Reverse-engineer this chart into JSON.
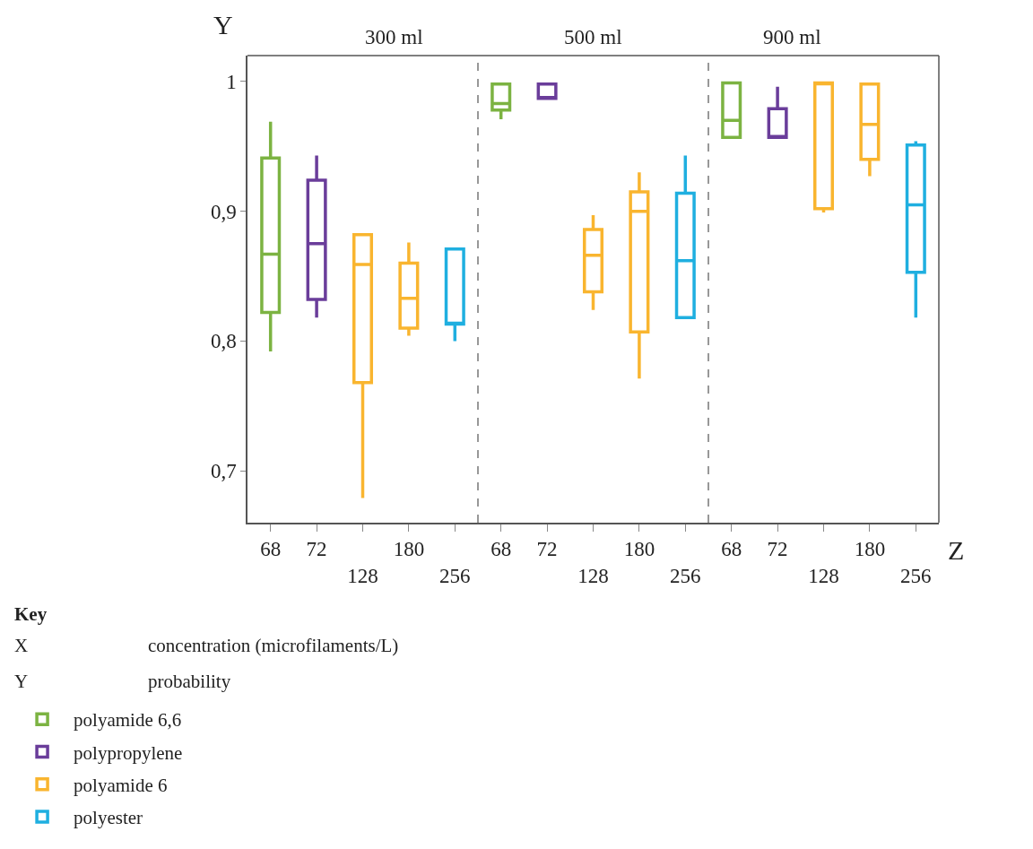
{
  "chart_data": [
    {
      "type": "box",
      "title": "300 ml",
      "ylabel": "Y",
      "categories": [
        "68",
        "72",
        "128",
        "180",
        "256"
      ],
      "ylim": [
        0.66,
        1.02
      ],
      "yticks": [
        {
          "value": 0.7,
          "label": "0,7"
        },
        {
          "value": 0.8,
          "label": "0,8"
        },
        {
          "value": 0.9,
          "label": "0,9"
        },
        1
      ],
      "legend": "bottom left",
      "legend_title": "Key",
      "annotations": [
        "X",
        "concentration (microfilaments/L)",
        "Y",
        "probability"
      ],
      "series": [
        {
          "name": "polyamide 6,6",
          "color": "#7cb342",
          "boxes": [
            {
              "low": 0.792,
              "q1": 0.822,
              "median": 0.867,
              "q3": 0.941,
              "high": 0.969
            },
            null,
            null,
            null,
            null
          ]
        },
        {
          "name": "polypropylene",
          "color": "#6a3d9a",
          "boxes": [
            null,
            {
              "low": 0.818,
              "q1": 0.832,
              "median": 0.875,
              "q3": 0.924,
              "high": 0.943
            },
            null,
            null,
            null
          ]
        },
        {
          "name": "polyamide 6",
          "color": "#f9b52f",
          "boxes": [
            null,
            null,
            {
              "low": 0.679,
              "q1": 0.768,
              "median": 0.859,
              "q3": 0.882,
              "high": 0.882
            },
            {
              "low": 0.804,
              "q1": 0.81,
              "median": 0.833,
              "q3": 0.86,
              "high": 0.876
            },
            null
          ]
        },
        {
          "name": "polyester",
          "color": "#1fafe0",
          "boxes": [
            null,
            null,
            null,
            null,
            {
              "low": 0.8,
              "q1": 0.813,
              "median": 0.813,
              "q3": 0.871,
              "high": 0.871
            }
          ]
        }
      ]
    },
    {
      "type": "box",
      "title": "500 ml",
      "categories": [
        "68",
        "72",
        "128",
        "180",
        "256"
      ],
      "ylim": [
        0.66,
        1.02
      ],
      "tick_labels": "x",
      "series": [
        {
          "color": "#7cb342",
          "boxes": [
            {
              "low": 0.971,
              "q1": 0.978,
              "median": 0.983,
              "q3": 0.998,
              "high": 0.998
            },
            null,
            null,
            null,
            null
          ]
        },
        {
          "color": "#6a3d9a",
          "boxes": [
            null,
            {
              "low": 0.987,
              "q1": 0.987,
              "median": 0.987,
              "q3": 0.998,
              "high": 0.998
            },
            null,
            null,
            null
          ]
        },
        {
          "color": "#f9b52f",
          "boxes": [
            null,
            null,
            {
              "low": 0.824,
              "q1": 0.838,
              "median": 0.866,
              "q3": 0.886,
              "high": 0.897
            },
            {
              "low": 0.771,
              "q1": 0.807,
              "median": 0.9,
              "q3": 0.915,
              "high": 0.93
            },
            null
          ]
        },
        {
          "color": "#1fafe0",
          "boxes": [
            null,
            null,
            null,
            null,
            {
              "low": 0.818,
              "q1": 0.818,
              "median": 0.862,
              "q3": 0.914,
              "high": 0.943
            }
          ]
        }
      ]
    },
    {
      "type": "box",
      "title": "900 ml",
      "xlabel": "Z",
      "categories": [
        "68",
        "72",
        "128",
        "180",
        "256"
      ],
      "ylim": [
        0.66,
        1.02
      ],
      "tick_labels": "x",
      "series": [
        {
          "color": "#7cb342",
          "boxes": [
            {
              "low": 0.957,
              "q1": 0.957,
              "median": 0.97,
              "q3": 0.999,
              "high": 0.999
            },
            null,
            null,
            null,
            null
          ]
        },
        {
          "color": "#6a3d9a",
          "boxes": [
            null,
            {
              "low": 0.957,
              "q1": 0.957,
              "median": 0.957,
              "q3": 0.979,
              "high": 0.996
            },
            null,
            null,
            null
          ]
        },
        {
          "color": "#f9b52f",
          "boxes": [
            null,
            null,
            {
              "low": 0.899,
              "q1": 0.902,
              "median": 0.999,
              "q3": 0.999,
              "high": 0.999
            },
            {
              "low": 0.927,
              "q1": 0.94,
              "median": 0.967,
              "q3": 0.998,
              "high": 0.998
            },
            null
          ]
        },
        {
          "color": "#1fafe0",
          "boxes": [
            null,
            null,
            null,
            null,
            {
              "low": 0.818,
              "q1": 0.853,
              "median": 0.905,
              "q3": 0.951,
              "high": 0.954
            }
          ]
        }
      ]
    }
  ]
}
